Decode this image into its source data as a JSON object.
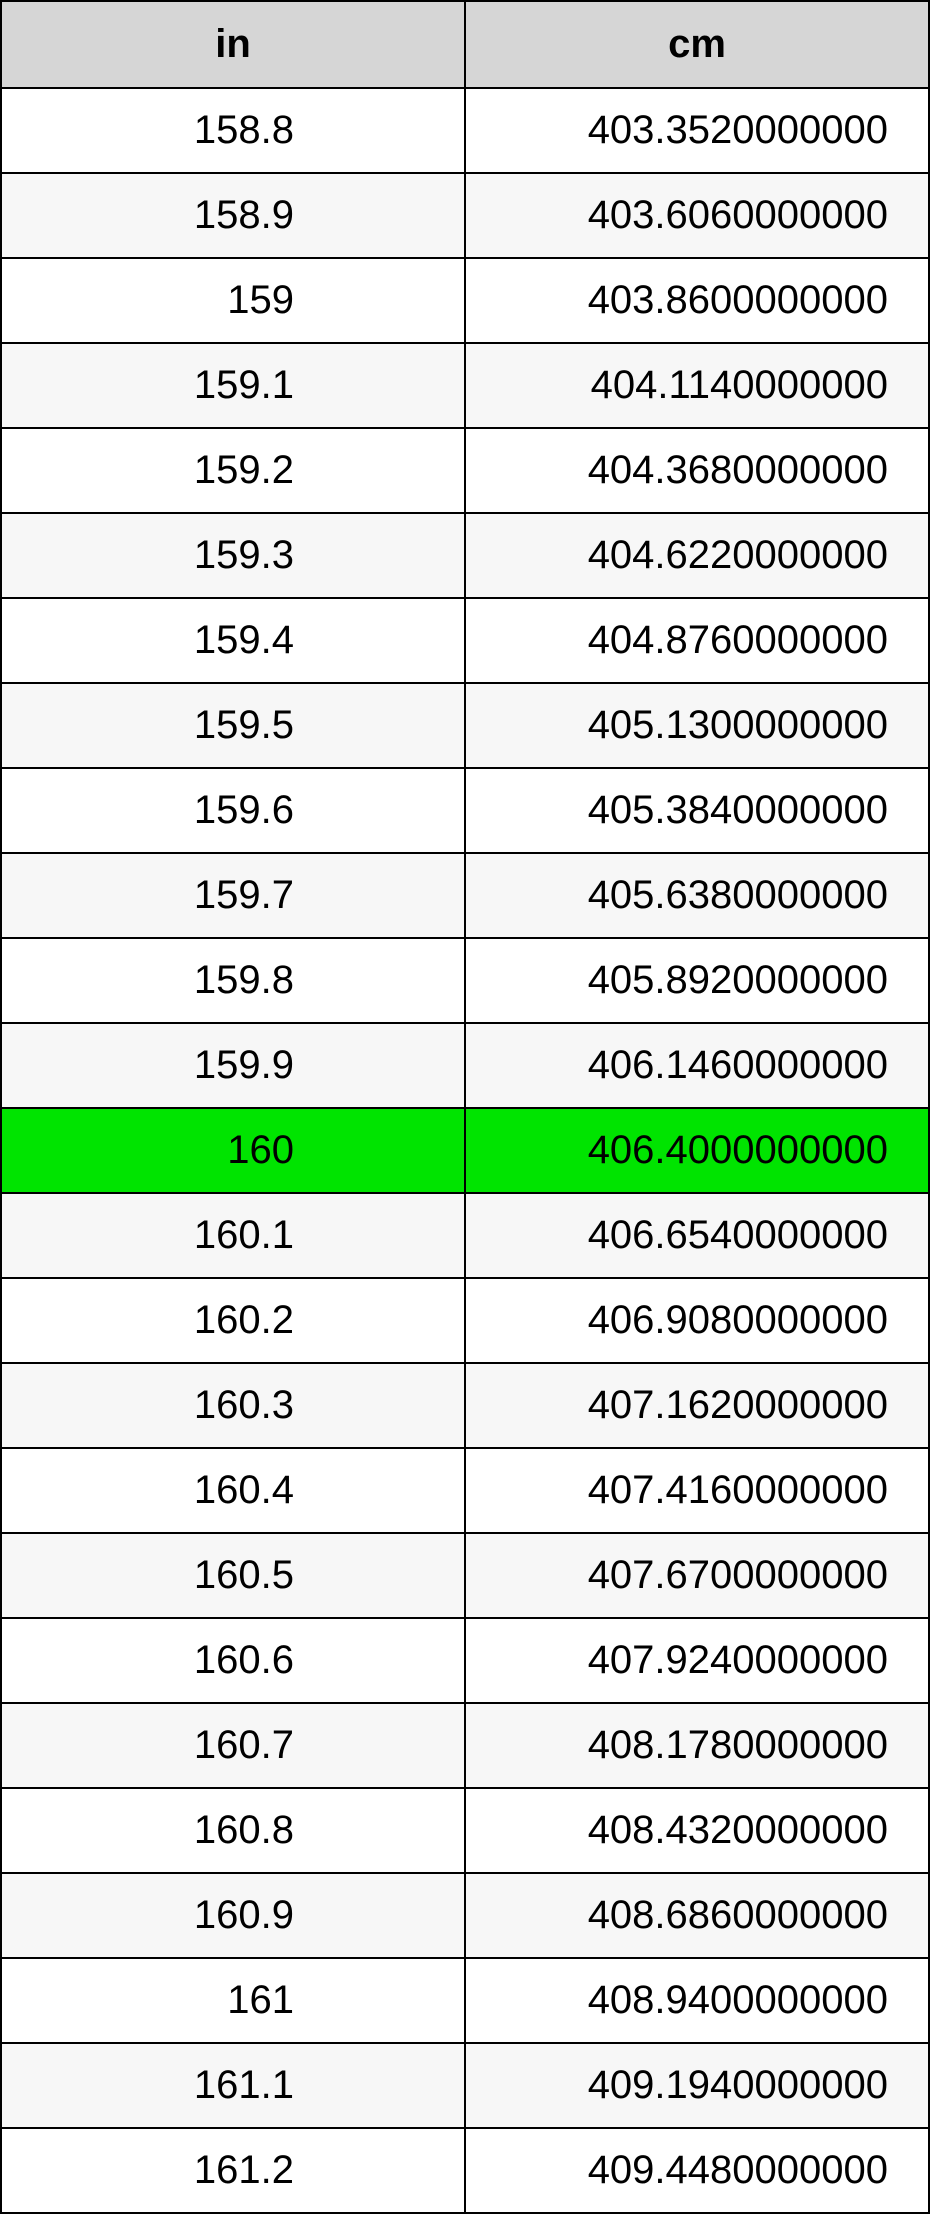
{
  "table": {
    "columns": [
      "in",
      "cm"
    ],
    "header_bg": "#d6d6d6",
    "row_bg_odd": "#ffffff",
    "row_bg_even": "#f7f7f7",
    "highlight_bg": "#00e400",
    "border_color": "#000000",
    "font_size": 40,
    "header_fontsize": 40,
    "highlight_index": 12,
    "rows": [
      {
        "in": "158.8",
        "cm": "403.3520000000"
      },
      {
        "in": "158.9",
        "cm": "403.6060000000"
      },
      {
        "in": "159",
        "cm": "403.8600000000"
      },
      {
        "in": "159.1",
        "cm": "404.1140000000"
      },
      {
        "in": "159.2",
        "cm": "404.3680000000"
      },
      {
        "in": "159.3",
        "cm": "404.6220000000"
      },
      {
        "in": "159.4",
        "cm": "404.8760000000"
      },
      {
        "in": "159.5",
        "cm": "405.1300000000"
      },
      {
        "in": "159.6",
        "cm": "405.3840000000"
      },
      {
        "in": "159.7",
        "cm": "405.6380000000"
      },
      {
        "in": "159.8",
        "cm": "405.8920000000"
      },
      {
        "in": "159.9",
        "cm": "406.1460000000"
      },
      {
        "in": "160",
        "cm": "406.4000000000"
      },
      {
        "in": "160.1",
        "cm": "406.6540000000"
      },
      {
        "in": "160.2",
        "cm": "406.9080000000"
      },
      {
        "in": "160.3",
        "cm": "407.1620000000"
      },
      {
        "in": "160.4",
        "cm": "407.4160000000"
      },
      {
        "in": "160.5",
        "cm": "407.6700000000"
      },
      {
        "in": "160.6",
        "cm": "407.9240000000"
      },
      {
        "in": "160.7",
        "cm": "408.1780000000"
      },
      {
        "in": "160.8",
        "cm": "408.4320000000"
      },
      {
        "in": "160.9",
        "cm": "408.6860000000"
      },
      {
        "in": "161",
        "cm": "408.9400000000"
      },
      {
        "in": "161.1",
        "cm": "409.1940000000"
      },
      {
        "in": "161.2",
        "cm": "409.4480000000"
      }
    ]
  }
}
